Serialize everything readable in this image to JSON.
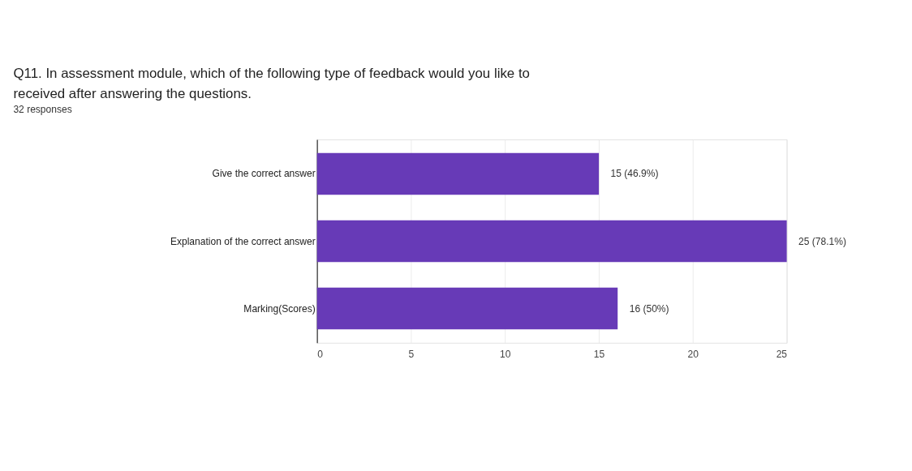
{
  "chart_data": {
    "type": "bar",
    "orientation": "horizontal",
    "title": "Q11. In assessment module, which of the following type of feedback would you like to received after answering the questions.",
    "subtitle": "32 responses",
    "categories": [
      "Give the correct answer",
      "Explanation of the correct answer",
      "Marking(Scores)"
    ],
    "values": [
      15,
      25,
      16
    ],
    "value_labels": [
      "15 (46.9%)",
      "25 (78.1%)",
      "16 (50%)"
    ],
    "color": "#673ab7",
    "xlim": [
      0,
      25
    ],
    "xticks": [
      0,
      5,
      10,
      15,
      20,
      25
    ],
    "grid": "x"
  }
}
